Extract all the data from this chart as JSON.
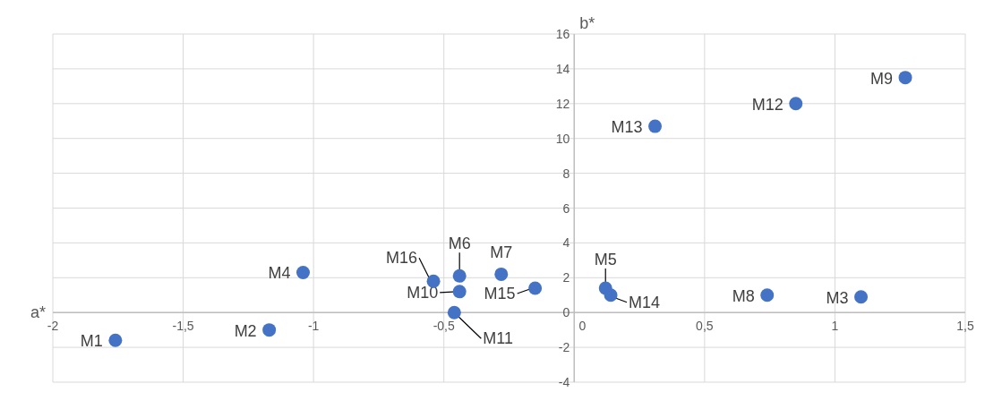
{
  "chart_data": {
    "type": "scatter",
    "xlabel": "a*",
    "ylabel": "b*",
    "x": [
      -1.76,
      -1.17,
      1.1,
      -1.04,
      0.12,
      -0.44,
      -0.28,
      0.74,
      1.27,
      -0.44,
      -0.46,
      0.85,
      0.31,
      0.14,
      -0.15,
      -0.54
    ],
    "series": [
      {
        "color": "#4472c4",
        "values": [
          -1.6,
          -1.0,
          0.9,
          2.3,
          1.4,
          2.1,
          2.2,
          1.0,
          13.5,
          1.2,
          0.0,
          12.0,
          10.7,
          1.0,
          1.4,
          1.8
        ]
      }
    ],
    "annotations": [
      {
        "text": "M1",
        "x": -1.76,
        "y": -1.6
      },
      {
        "text": "M2",
        "x": -1.17,
        "y": -1.0
      },
      {
        "text": "M3",
        "x": 1.1,
        "y": 0.9
      },
      {
        "text": "M4",
        "x": -1.04,
        "y": 2.3
      },
      {
        "text": "M5",
        "x": 0.12,
        "y": 1.4
      },
      {
        "text": "M6",
        "x": -0.44,
        "y": 2.1
      },
      {
        "text": "M7",
        "x": -0.28,
        "y": 2.2
      },
      {
        "text": "M8",
        "x": 0.74,
        "y": 1.0
      },
      {
        "text": "M9",
        "x": 1.27,
        "y": 13.5
      },
      {
        "text": "M10",
        "x": -0.44,
        "y": 1.2
      },
      {
        "text": "M11",
        "x": -0.46,
        "y": 0.0
      },
      {
        "text": "M12",
        "x": 0.85,
        "y": 12.0
      },
      {
        "text": "M13",
        "x": 0.31,
        "y": 10.7
      },
      {
        "text": "M14",
        "x": 0.14,
        "y": 1.0
      },
      {
        "text": "M15",
        "x": -0.15,
        "y": 1.4
      },
      {
        "text": "M16",
        "x": -0.54,
        "y": 1.8
      }
    ],
    "xlim": [
      -2,
      1.5
    ],
    "xticks": [
      -2,
      {
        "value": -1.5,
        "label": "-1,5"
      },
      -1,
      {
        "value": -0.5,
        "label": "-0,5"
      },
      0,
      {
        "value": 0.5,
        "label": "0,5"
      },
      1,
      {
        "value": 1.5,
        "label": "1,5"
      }
    ],
    "ylim": [
      -4,
      16
    ],
    "yticks": [
      -4,
      -2,
      0,
      2,
      4,
      6,
      8,
      10,
      12,
      14,
      16
    ],
    "grid": true,
    "marker": "circle"
  }
}
